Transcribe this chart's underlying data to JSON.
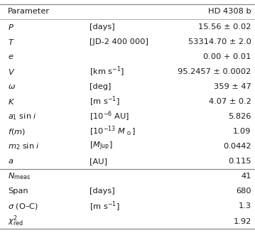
{
  "title_left": "Parameter",
  "title_right": "HD 4308 b",
  "rows": [
    {
      "param": "$P$",
      "unit": "[days]",
      "value": "15.56 ± 0.02"
    },
    {
      "param": "$T$",
      "unit": "[JD-2 400 000]",
      "value": "53314.70 ± 2.0"
    },
    {
      "param": "$e$",
      "unit": "",
      "value": "0.00 + 0.01"
    },
    {
      "param": "$V$",
      "unit": "[km s$^{-1}$]",
      "value": "95.2457 ± 0.0002"
    },
    {
      "param": "$\\omega$",
      "unit": "[deg]",
      "value": "359 ± 47"
    },
    {
      "param": "$K$",
      "unit": "[m s$^{-1}$]",
      "value": "4.07 ± 0.2"
    },
    {
      "param": "$a_1$ sin $i$",
      "unit": "[10$^{-6}$ AU]",
      "value": "5.826"
    },
    {
      "param": "$f(m)$",
      "unit": "[10$^{-13}$ $M_\\odot$]",
      "value": "1.09"
    },
    {
      "param": "$m_2$ sin $i$",
      "unit": "[$M_\\mathrm{Jup}$]",
      "value": "0.0442"
    },
    {
      "param": "$a$",
      "unit": "[AU]",
      "value": "0.115"
    }
  ],
  "rows2": [
    {
      "param": "$N_\\mathrm{meas}$",
      "unit": "",
      "value": "41"
    },
    {
      "param": "Span",
      "unit": "[days]",
      "value": "680"
    },
    {
      "param": "$\\sigma$ (O–C)",
      "unit": "[m s$^{-1}$]",
      "value": "1.3"
    },
    {
      "param": "$\\chi^2_\\mathrm{red}$",
      "unit": "",
      "value": "1.92"
    }
  ],
  "bg_color": "#ffffff",
  "text_color": "#1a1a1a",
  "line_color": "#888888",
  "fontsize": 8.2,
  "fig_width": 3.59,
  "fig_height": 3.28,
  "dpi": 100
}
